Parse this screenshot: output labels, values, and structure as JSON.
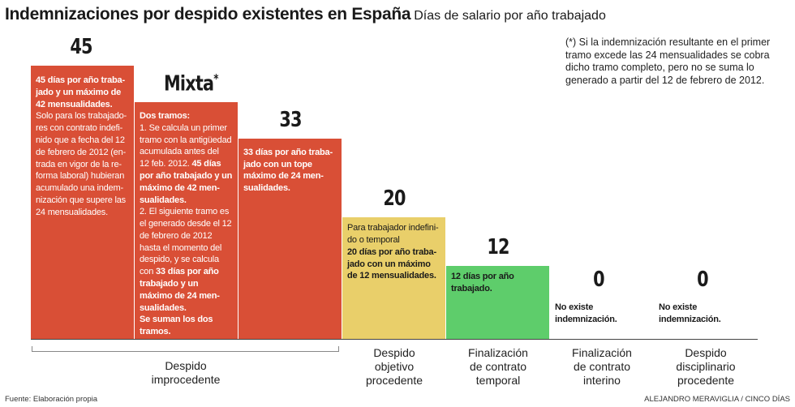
{
  "header": {
    "title": "Indemnizaciones por despido existentes en España",
    "subtitle": "Días de salario por año trabajado"
  },
  "footnote": "(*) Si la indemnización resultante en el primer tramo excede las 24 mensualidades se cobra dicho tramo completo, pero no se suma lo generado a partir del 12 de febrero de 2012.",
  "colors": {
    "red": "#d94f36",
    "yellow": "#e9cf6a",
    "green": "#5ecd6b",
    "baseline": "#444444"
  },
  "chart_data": {
    "type": "bar",
    "title": "Indemnizaciones por despido existentes en España",
    "subtitle": "Días de salario por año trabajado",
    "ylim": [
      0,
      45
    ],
    "bars": [
      {
        "label": "45",
        "value": 45,
        "color": "red",
        "group": "Despido improcedente",
        "text": [
          {
            "t": "45 días por año traba-",
            "b": true
          },
          {
            "t": "jado y un máximo de",
            "b": true
          },
          {
            "t": "42 mensualidades.",
            "b": true
          },
          {
            "t": "Solo para los trabajado-"
          },
          {
            "t": "res con contrato indefi-"
          },
          {
            "t": "nido que a fecha del 12"
          },
          {
            "t": "de febrero de 2012 (en-"
          },
          {
            "t": "trada en vigor de la re-"
          },
          {
            "t": "forma laboral) hubieran"
          },
          {
            "t": "acumulado una indem-"
          },
          {
            "t": "nización que supere las"
          },
          {
            "t": "24 mensualidades."
          }
        ]
      },
      {
        "label": "Mixta",
        "label_mark": "*",
        "value": 39,
        "color": "red",
        "group": "Despido improcedente",
        "text": [
          {
            "t": "Dos tramos:",
            "b": true
          },
          {
            "t": "1. Se calcula un primer"
          },
          {
            "t": "tramo con la antigüedad"
          },
          {
            "t": "acumulada antes del"
          },
          {
            "t": "12 feb. 2012. ",
            "bt": "45 días"
          },
          {
            "t": "por año trabajado y un",
            "b": true
          },
          {
            "t": "máximo de 42 men-",
            "b": true
          },
          {
            "t": "sualidades.",
            "b": true
          },
          {
            "t": "2. El siguiente tramo es"
          },
          {
            "t": "el generado desde el 12"
          },
          {
            "t": "de febrero de 2012"
          },
          {
            "t": "hasta el momento del"
          },
          {
            "t": "despido, y se calcula"
          },
          {
            "t": "con ",
            "bt": "33 días por año"
          },
          {
            "t": "trabajado y un",
            "b": true
          },
          {
            "t": "máximo de 24 men-",
            "b": true
          },
          {
            "t": "sualidades.",
            "b": true
          },
          {
            "t": "Se suman los dos",
            "b": true
          },
          {
            "t": "tramos.",
            "b": true
          }
        ]
      },
      {
        "label": "33",
        "value": 33,
        "color": "red",
        "group": "Despido improcedente",
        "text": [
          {
            "t": "33 días por año traba-",
            "b": true
          },
          {
            "t": "jado con un tope",
            "b": true
          },
          {
            "t": "máximo de 24 men-",
            "b": true
          },
          {
            "t": "sualidades.",
            "b": true
          }
        ]
      },
      {
        "label": "20",
        "value": 20,
        "color": "yellow",
        "group": "Despido objetivo procedente",
        "text": [
          {
            "t": "Para trabajador indefini-"
          },
          {
            "t": "do o temporal"
          },
          {
            "t": "20 días por año traba-",
            "b": true
          },
          {
            "t": "jado con un máximo",
            "b": true
          },
          {
            "t": "de  12 mensualidades.",
            "b": true
          }
        ]
      },
      {
        "label": "12",
        "value": 12,
        "color": "green",
        "group": "Finalización de contrato temporal",
        "text": [
          {
            "t": "12 días por año",
            "b": true
          },
          {
            "t": "trabajado.",
            "b": true
          }
        ]
      },
      {
        "label": "0",
        "value": 0,
        "color": "none",
        "group": "Finalización de contrato interino",
        "text": [
          {
            "t": "No existe",
            "b": true
          },
          {
            "t": "indemnización.",
            "b": true
          }
        ]
      },
      {
        "label": "0",
        "value": 0,
        "color": "none",
        "group": "Despido disciplinario procedente",
        "text": [
          {
            "t": "No existe",
            "b": true
          },
          {
            "t": "indemnización.",
            "b": true
          }
        ]
      }
    ],
    "categories": [
      {
        "lines": [
          "Despido",
          "improcedente"
        ]
      },
      {
        "lines": [
          "Despido",
          "objetivo",
          "procedente"
        ]
      },
      {
        "lines": [
          "Finalización",
          "de contrato",
          "temporal"
        ]
      },
      {
        "lines": [
          "Finalización",
          "de contrato",
          "interino"
        ]
      },
      {
        "lines": [
          "Despido",
          "disciplinario",
          "procedente"
        ]
      }
    ]
  },
  "footer": {
    "source": "Fuente: Elaboración propia",
    "credit": "ALEJANDRO MERAVIGLIA / CINCO DÍAS"
  }
}
